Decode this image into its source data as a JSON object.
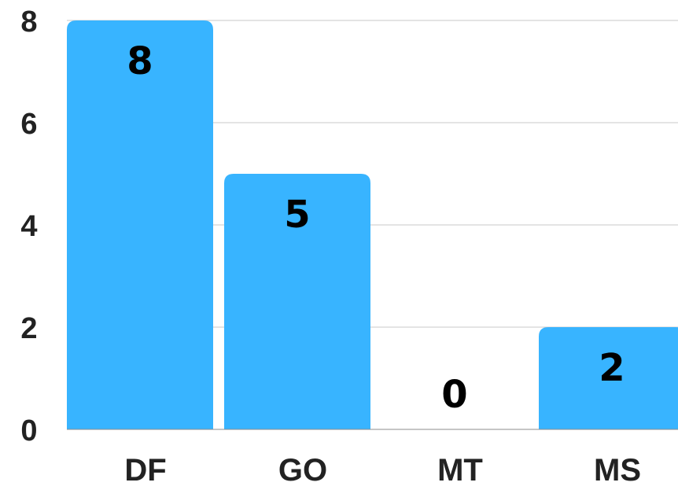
{
  "chart_data": {
    "type": "bar",
    "categories": [
      "DF",
      "GO",
      "MT",
      "MS"
    ],
    "values": [
      8,
      5,
      0,
      2
    ],
    "data_labels": [
      "8",
      "5",
      "0",
      "2"
    ],
    "y_ticks": [
      0,
      2,
      4,
      6,
      8
    ],
    "ylim": [
      0,
      8
    ],
    "grid": true,
    "bar_color": "#38b4ff",
    "title": "",
    "xlabel": "",
    "ylabel": ""
  }
}
